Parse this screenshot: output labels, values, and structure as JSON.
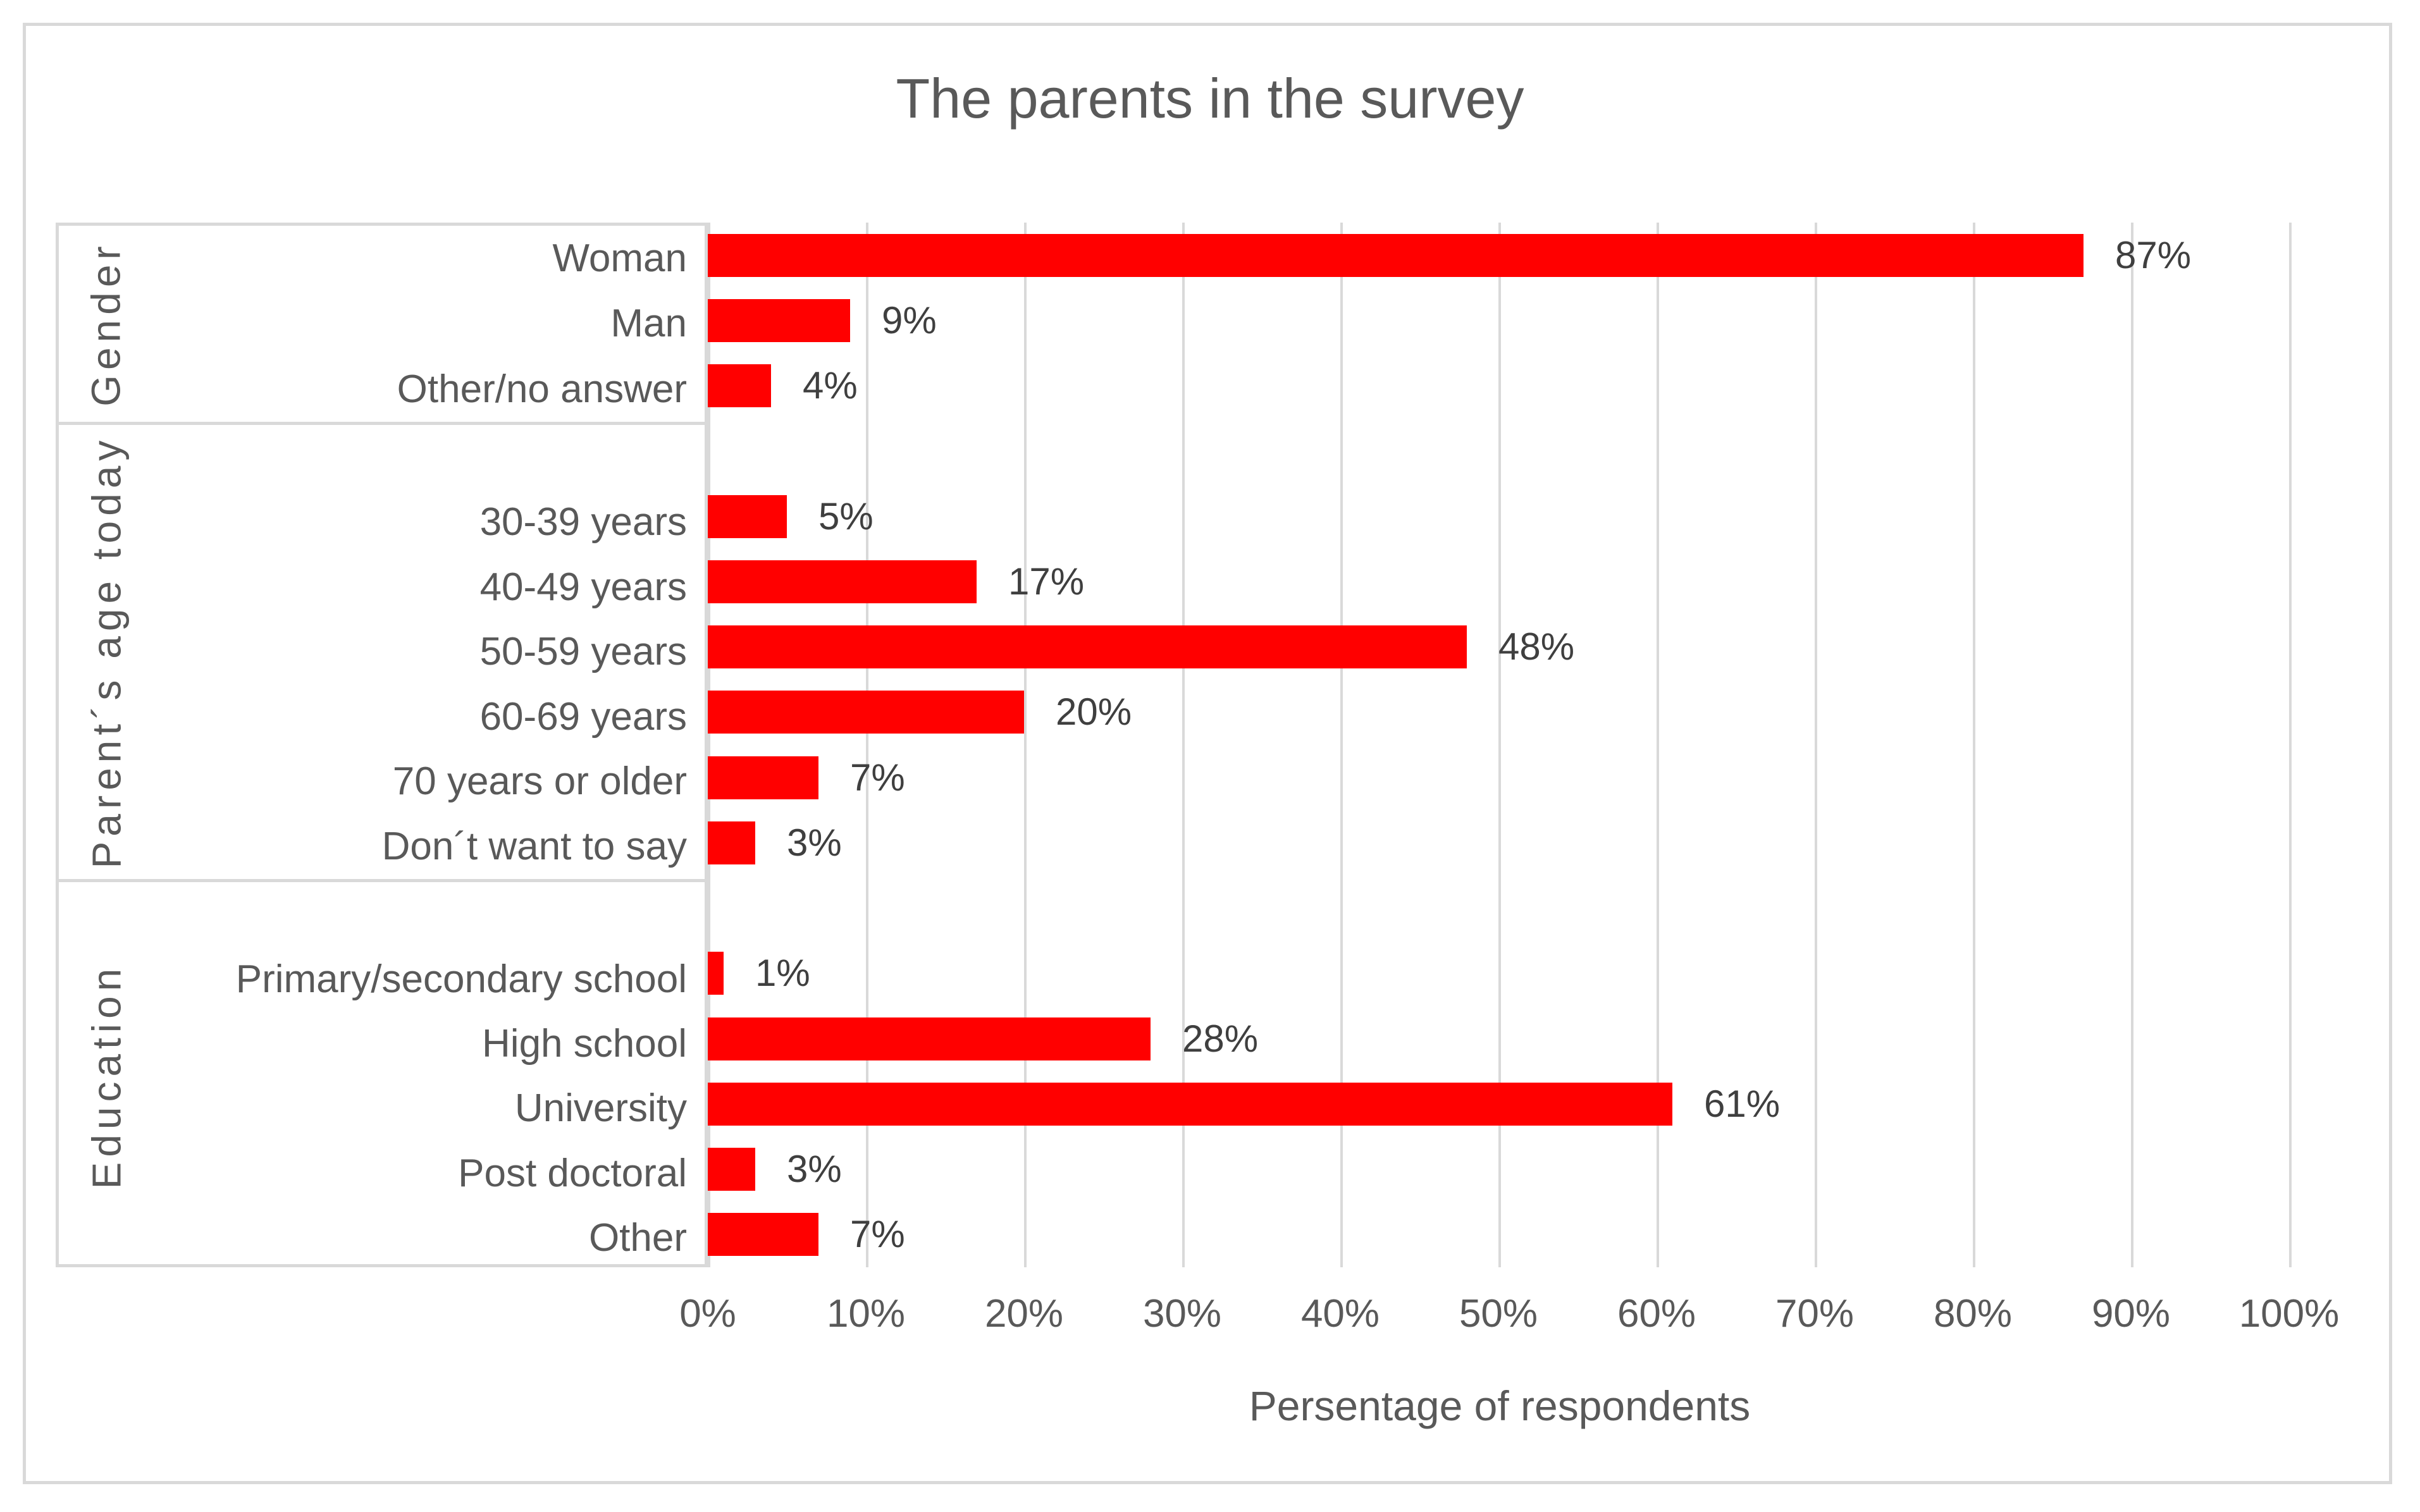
{
  "title": "The parents in the survey",
  "x_axis": {
    "label": "Persentage of respondents"
  },
  "colors": {
    "bar": "#ff0000",
    "text": "#595959",
    "value_text": "#3f3f3f",
    "grid": "#d9d9d9"
  },
  "chart_data": {
    "type": "bar",
    "orientation": "horizontal",
    "title": "The parents in the survey",
    "xlabel": "Persentage of respondents",
    "xlim": [
      0,
      100
    ],
    "grid": true,
    "legend": false,
    "x_tick_labels": [
      "0%",
      "10%",
      "20%",
      "30%",
      "40%",
      "50%",
      "60%",
      "70%",
      "80%",
      "90%",
      "100%"
    ],
    "bar_color": "#ff0000",
    "groups": [
      {
        "group": "Gender",
        "categories": [
          "Woman",
          "Man",
          "Other/no answer"
        ],
        "values": [
          87,
          9,
          4
        ],
        "value_labels": [
          "87%",
          "9%",
          "4%"
        ]
      },
      {
        "group": "Parent´s age today",
        "categories": [
          "30-39 years",
          "40-49 years",
          "50-59 years",
          "60-69 years",
          "70 years or older",
          "Don´t want to say"
        ],
        "values": [
          5,
          17,
          48,
          20,
          7,
          3
        ],
        "value_labels": [
          "5%",
          "17%",
          "48%",
          "20%",
          "7%",
          "3%"
        ]
      },
      {
        "group": "Education",
        "categories": [
          "Primary/secondary school",
          "High school",
          "University",
          "Post doctoral",
          "Other"
        ],
        "values": [
          1,
          28,
          61,
          3,
          7
        ],
        "value_labels": [
          "1%",
          "28%",
          "61%",
          "3%",
          "7%"
        ]
      }
    ]
  }
}
